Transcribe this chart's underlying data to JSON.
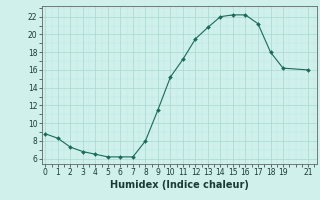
{
  "x": [
    0,
    1,
    2,
    3,
    4,
    5,
    6,
    7,
    8,
    9,
    10,
    11,
    12,
    13,
    14,
    15,
    16,
    17,
    18,
    19,
    21
  ],
  "y": [
    8.8,
    8.3,
    7.3,
    6.8,
    6.5,
    6.2,
    6.2,
    6.2,
    8.0,
    11.5,
    15.2,
    17.2,
    19.5,
    20.8,
    22.0,
    22.2,
    22.2,
    21.2,
    18.0,
    16.2,
    16.0
  ],
  "line_color": "#1a6b5a",
  "marker": "D",
  "marker_size": 2.0,
  "bg_color": "#cff0eb",
  "grid_minor_color": "#b8e8e2",
  "grid_major_color": "#a8d8d2",
  "xlabel": "Humidex (Indice chaleur)",
  "xticks": [
    0,
    1,
    2,
    3,
    4,
    5,
    6,
    7,
    8,
    9,
    10,
    11,
    12,
    13,
    14,
    15,
    16,
    17,
    18,
    19,
    21
  ],
  "yticks": [
    6,
    8,
    10,
    12,
    14,
    16,
    18,
    20,
    22
  ],
  "xlim": [
    -0.3,
    21.7
  ],
  "ylim": [
    5.4,
    23.2
  ],
  "tick_fontsize": 5.5,
  "label_fontsize": 7.0,
  "spine_color": "#666666",
  "line_width": 0.8
}
